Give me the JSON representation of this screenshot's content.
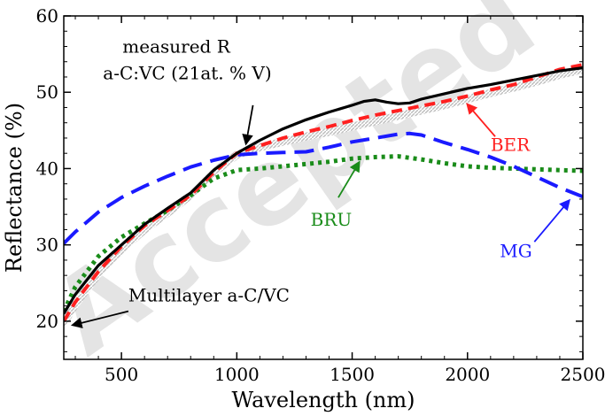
{
  "watermark": "Accepted",
  "chart_data": {
    "type": "line",
    "xlabel": "Wavelength (nm)",
    "ylabel": "Reflectance (%)",
    "xlim": [
      250,
      2500
    ],
    "ylim": [
      15,
      60
    ],
    "xticks": [
      500,
      1000,
      1500,
      2000,
      2500
    ],
    "yticks": [
      20,
      30,
      40,
      50,
      60
    ],
    "grid": false,
    "series": [
      {
        "name": "measured R",
        "color": "#000000",
        "style": "solid",
        "x": [
          250,
          300,
          400,
          500,
          600,
          700,
          800,
          900,
          1000,
          1100,
          1200,
          1300,
          1400,
          1500,
          1550,
          1600,
          1650,
          1700,
          1750,
          1800,
          1900,
          2000,
          2100,
          2200,
          2300,
          2400,
          2500
        ],
        "y": [
          21.0,
          23.5,
          27.3,
          30.0,
          32.7,
          34.8,
          36.8,
          39.8,
          42.0,
          43.7,
          45.2,
          46.4,
          47.4,
          48.3,
          48.8,
          49.0,
          48.7,
          48.5,
          48.6,
          49.1,
          49.8,
          50.5,
          51.0,
          51.6,
          52.2,
          52.8,
          53.2
        ]
      },
      {
        "name": "BER",
        "color": "#ff2020",
        "style": "short-dash",
        "x": [
          250,
          300,
          400,
          500,
          600,
          700,
          800,
          900,
          1000,
          1100,
          1200,
          1300,
          1400,
          1500,
          1600,
          1700,
          1800,
          1900,
          2000,
          2100,
          2200,
          2300,
          2400,
          2500
        ],
        "y": [
          20.0,
          22.5,
          26.5,
          29.8,
          32.5,
          34.5,
          36.5,
          39.5,
          42.0,
          43.0,
          44.0,
          44.8,
          45.5,
          46.3,
          47.0,
          47.6,
          48.2,
          48.8,
          49.5,
          50.3,
          51.0,
          52.0,
          53.0,
          53.6
        ]
      },
      {
        "name": "MG",
        "color": "#1a1aff",
        "style": "long-dash",
        "x": [
          250,
          300,
          400,
          500,
          600,
          700,
          800,
          900,
          1000,
          1100,
          1200,
          1300,
          1400,
          1500,
          1600,
          1700,
          1750,
          1800,
          1900,
          2000,
          2100,
          2200,
          2300,
          2400,
          2500
        ],
        "y": [
          30.2,
          31.7,
          34.3,
          36.2,
          37.7,
          39.0,
          40.2,
          41.1,
          41.8,
          42.0,
          42.1,
          42.2,
          42.8,
          43.5,
          44.0,
          44.5,
          44.6,
          44.4,
          43.4,
          42.5,
          41.5,
          40.3,
          38.9,
          37.5,
          36.3
        ]
      },
      {
        "name": "BRU",
        "color": "#1a8c1a",
        "style": "dotted",
        "x": [
          250,
          300,
          400,
          500,
          600,
          700,
          800,
          900,
          1000,
          1100,
          1200,
          1300,
          1400,
          1500,
          1600,
          1700,
          1800,
          1900,
          2000,
          2100,
          2200,
          2300,
          2400,
          2500
        ],
        "y": [
          21.3,
          24.5,
          28.5,
          31.0,
          32.8,
          34.5,
          36.5,
          38.7,
          39.8,
          40.0,
          40.3,
          40.6,
          40.9,
          41.3,
          41.5,
          41.6,
          41.2,
          40.7,
          40.3,
          40.1,
          40.0,
          39.9,
          39.8,
          39.7
        ]
      },
      {
        "name": "Multilayer a-C/VC",
        "color": "#c8c8c8",
        "style": "hatched",
        "x": [
          250,
          300,
          400,
          500,
          600,
          700,
          800,
          900,
          1000,
          1100,
          1200,
          1300,
          1400,
          1500,
          1600,
          1700,
          1800,
          1900,
          2000,
          2100,
          2200,
          2300,
          2400,
          2500
        ],
        "y": [
          19.8,
          22.2,
          26.2,
          29.4,
          32.0,
          34.2,
          36.5,
          39.5,
          41.8,
          42.8,
          43.5,
          44.2,
          44.8,
          45.5,
          46.2,
          46.9,
          47.6,
          48.3,
          49.1,
          49.9,
          50.6,
          51.4,
          52.3,
          53.0
        ]
      }
    ],
    "annotations": [
      {
        "id": "measured",
        "lines": [
          "measured R",
          "a-C:VC (21at. % V)"
        ],
        "color": "#000000",
        "x": 420,
        "y": 55.2,
        "arrow_from": [
          1070,
          48.3
        ],
        "arrow_to": [
          1040,
          43.3
        ]
      },
      {
        "id": "ber",
        "lines": [
          "BER"
        ],
        "color": "#ff2020",
        "x": 2100,
        "y": 42.3,
        "arrow_from": [
          2120,
          44.2
        ],
        "arrow_to": [
          2000,
          48.4
        ]
      },
      {
        "id": "bru",
        "lines": [
          "BRU"
        ],
        "color": "#1a8c1a",
        "x": 1320,
        "y": 32.5,
        "arrow_from": [
          1440,
          36.2
        ],
        "arrow_to": [
          1530,
          40.8
        ]
      },
      {
        "id": "mg",
        "lines": [
          "MG"
        ],
        "color": "#1a1aff",
        "x": 2140,
        "y": 28.4,
        "arrow_from": [
          2290,
          30.4
        ],
        "arrow_to": [
          2440,
          35.8
        ]
      },
      {
        "id": "multilayer",
        "lines": [
          "Multilayer a-C/VC"
        ],
        "color": "#000000",
        "x": 530,
        "y": 22.6,
        "arrow_from": [
          530,
          21.3
        ],
        "arrow_to": [
          290,
          19.5
        ]
      }
    ]
  }
}
